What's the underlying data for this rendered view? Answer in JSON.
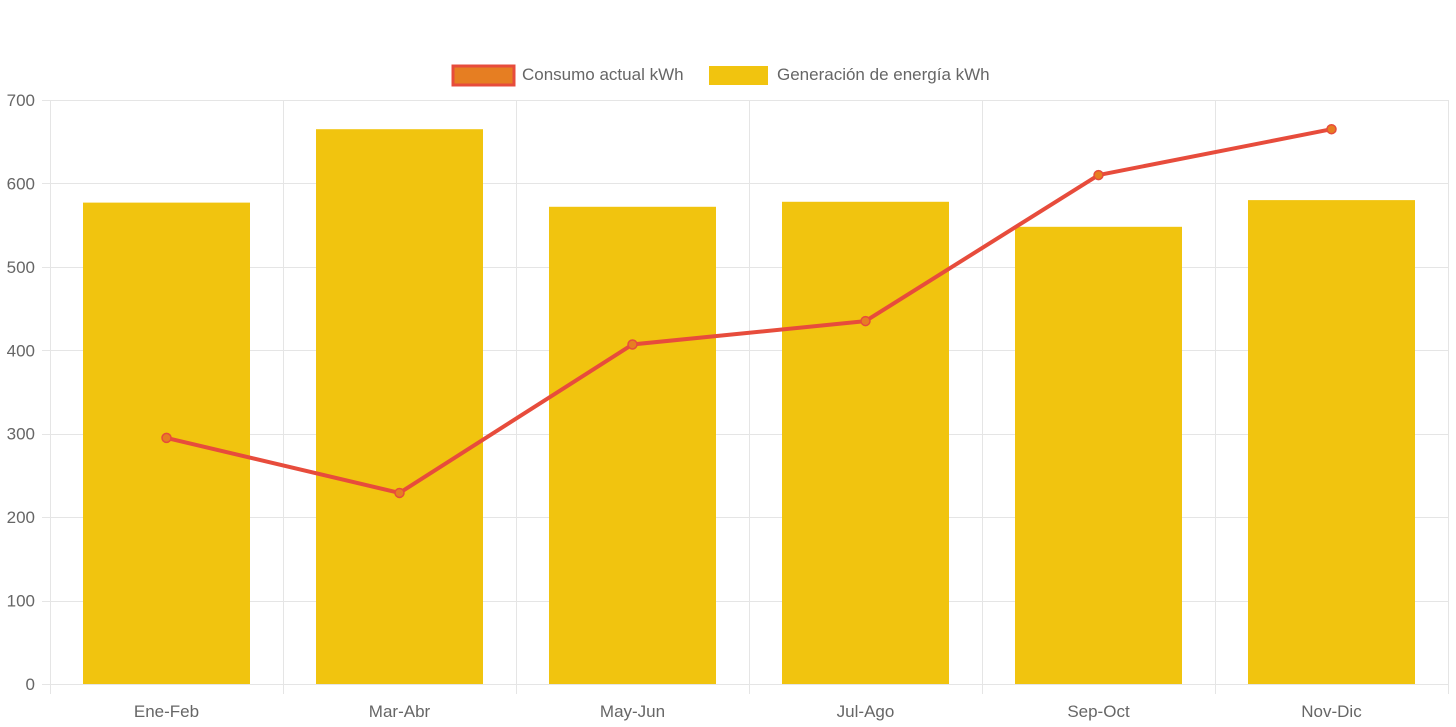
{
  "chart_data": {
    "type": "bar",
    "categories": [
      "Ene-Feb",
      "Mar-Abr",
      "May-Jun",
      "Jul-Ago",
      "Sep-Oct",
      "Nov-Dic"
    ],
    "series": [
      {
        "name": "Consumo actual kWh",
        "type": "line",
        "values": [
          295,
          229,
          407,
          435,
          610,
          665
        ],
        "color": "#e74c3c",
        "point_color": "#e67e22"
      },
      {
        "name": "Generación de energía kWh",
        "type": "bar",
        "values": [
          577,
          665,
          572,
          578,
          548,
          580
        ],
        "color": "#f1c40f"
      }
    ],
    "ylim": [
      0,
      700
    ],
    "yticks": [
      0,
      100,
      200,
      300,
      400,
      500,
      600,
      700
    ],
    "grid": true,
    "legend_position": "top-center",
    "colors": {
      "grid": "#e5e5e5",
      "tick_text": "#666666",
      "legend_line_fill": "#e67e22",
      "legend_line_border": "#e74c3c"
    }
  }
}
